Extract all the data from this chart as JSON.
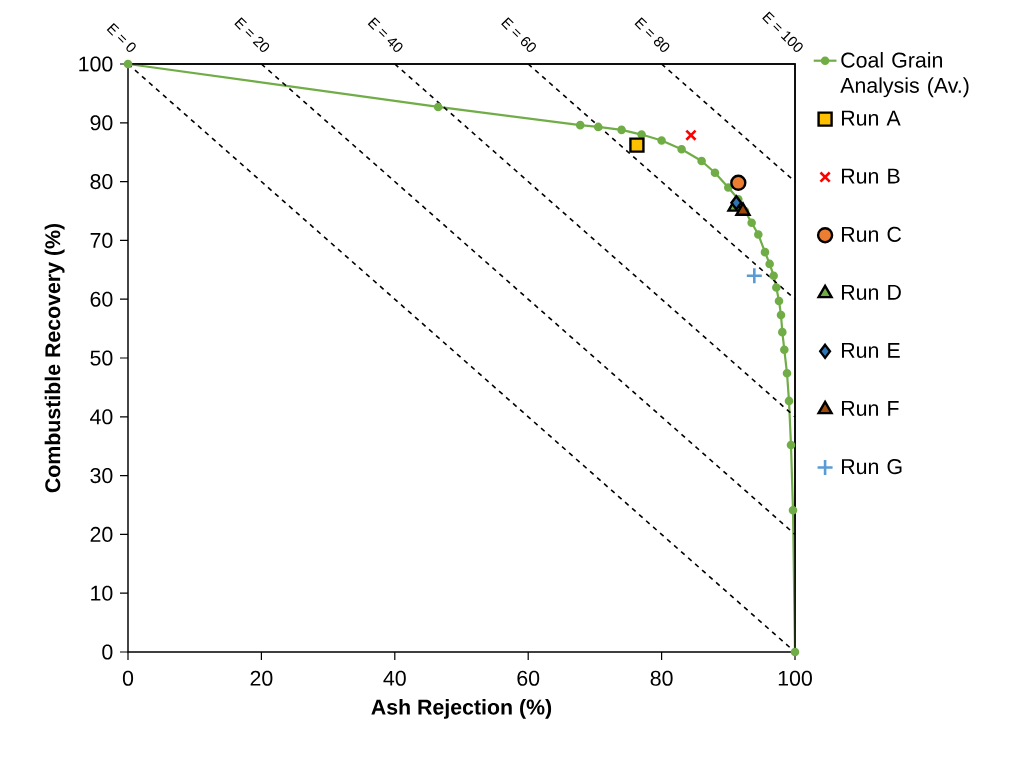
{
  "chart_data": {
    "type": "line",
    "xlabel": "Ash Rejection (%)",
    "ylabel": "Combustible Recovery (%)",
    "xlim": [
      0,
      100
    ],
    "ylim": [
      0,
      100
    ],
    "xticks": [
      0,
      20,
      40,
      60,
      80,
      100
    ],
    "yticks": [
      0,
      10,
      20,
      30,
      40,
      50,
      60,
      70,
      80,
      90,
      100
    ],
    "grid": false,
    "legend": "top right",
    "series": [
      {
        "name": "Coal Grain Analysis (Av.)",
        "color": "#70ad47",
        "marker": "circle",
        "line_style": "solid",
        "x": [
          0,
          46.5,
          67.8,
          70.5,
          74,
          77,
          80,
          83,
          86,
          88,
          90,
          91.5,
          92.5,
          93.5,
          94.5,
          95.5,
          96.2,
          96.8,
          97.2,
          97.6,
          97.9,
          98.1,
          98.4,
          98.8,
          99.1,
          99.4,
          99.7,
          100
        ],
        "values": [
          100,
          92.7,
          89.6,
          89.3,
          88.8,
          88,
          87,
          85.5,
          83.5,
          81.5,
          79,
          77,
          75,
          73,
          71,
          68,
          66,
          64,
          62,
          59.7,
          57.3,
          54.4,
          51.4,
          47.4,
          42.7,
          35.2,
          24.1,
          0
        ]
      },
      {
        "name": "Run A",
        "type": "scatter",
        "color": "#ffc000",
        "marker": "square",
        "x": [
          76.3
        ],
        "values": [
          86.2
        ]
      },
      {
        "name": "Run B",
        "type": "scatter",
        "color": "#ff0000",
        "marker": "cross",
        "x": [
          84.4
        ],
        "values": [
          87.9
        ]
      },
      {
        "name": "Run C",
        "type": "scatter",
        "color": "#ed7d31",
        "marker": "circle",
        "x": [
          91.5
        ],
        "values": [
          79.8
        ]
      },
      {
        "name": "Run D",
        "type": "scatter",
        "color": "#70ad47",
        "marker": "triangle",
        "x": [
          91.0
        ],
        "values": [
          75.7
        ]
      },
      {
        "name": "Run E",
        "type": "scatter",
        "color": "#2e75b6",
        "marker": "diamond",
        "x": [
          91.2
        ],
        "values": [
          76.4
        ]
      },
      {
        "name": "Run F",
        "type": "scatter",
        "color": "#9c4a0e",
        "marker": "triangle",
        "x": [
          92.2
        ],
        "values": [
          75.0
        ]
      },
      {
        "name": "Run G",
        "type": "scatter",
        "color": "#5b9bd5",
        "marker": "plus",
        "x": [
          93.9
        ],
        "values": [
          64.0
        ]
      },
      {
        "color": "#000000",
        "marker": "none",
        "line_style": "dashed",
        "x": [
          0,
          100
        ],
        "values": [
          100,
          0
        ]
      },
      {
        "color": "#000000",
        "marker": "none",
        "line_style": "dashed",
        "x": [
          20,
          100
        ],
        "values": [
          100,
          20
        ]
      },
      {
        "color": "#000000",
        "marker": "none",
        "line_style": "dashed",
        "x": [
          40,
          100
        ],
        "values": [
          100,
          40
        ]
      },
      {
        "color": "#000000",
        "marker": "none",
        "line_style": "dashed",
        "x": [
          60,
          100
        ],
        "values": [
          100,
          60
        ]
      },
      {
        "color": "#000000",
        "marker": "none",
        "line_style": "dashed",
        "x": [
          80,
          100
        ],
        "values": [
          100,
          80
        ]
      }
    ],
    "annotations": [
      {
        "text": "E = 0",
        "x": 0,
        "y": 100
      },
      {
        "text": "E = 20",
        "x": 20,
        "y": 100
      },
      {
        "text": "E = 40",
        "x": 40,
        "y": 100
      },
      {
        "text": "E = 60",
        "x": 60,
        "y": 100
      },
      {
        "text": "E = 80",
        "x": 80,
        "y": 100
      },
      "E = 100"
    ]
  }
}
